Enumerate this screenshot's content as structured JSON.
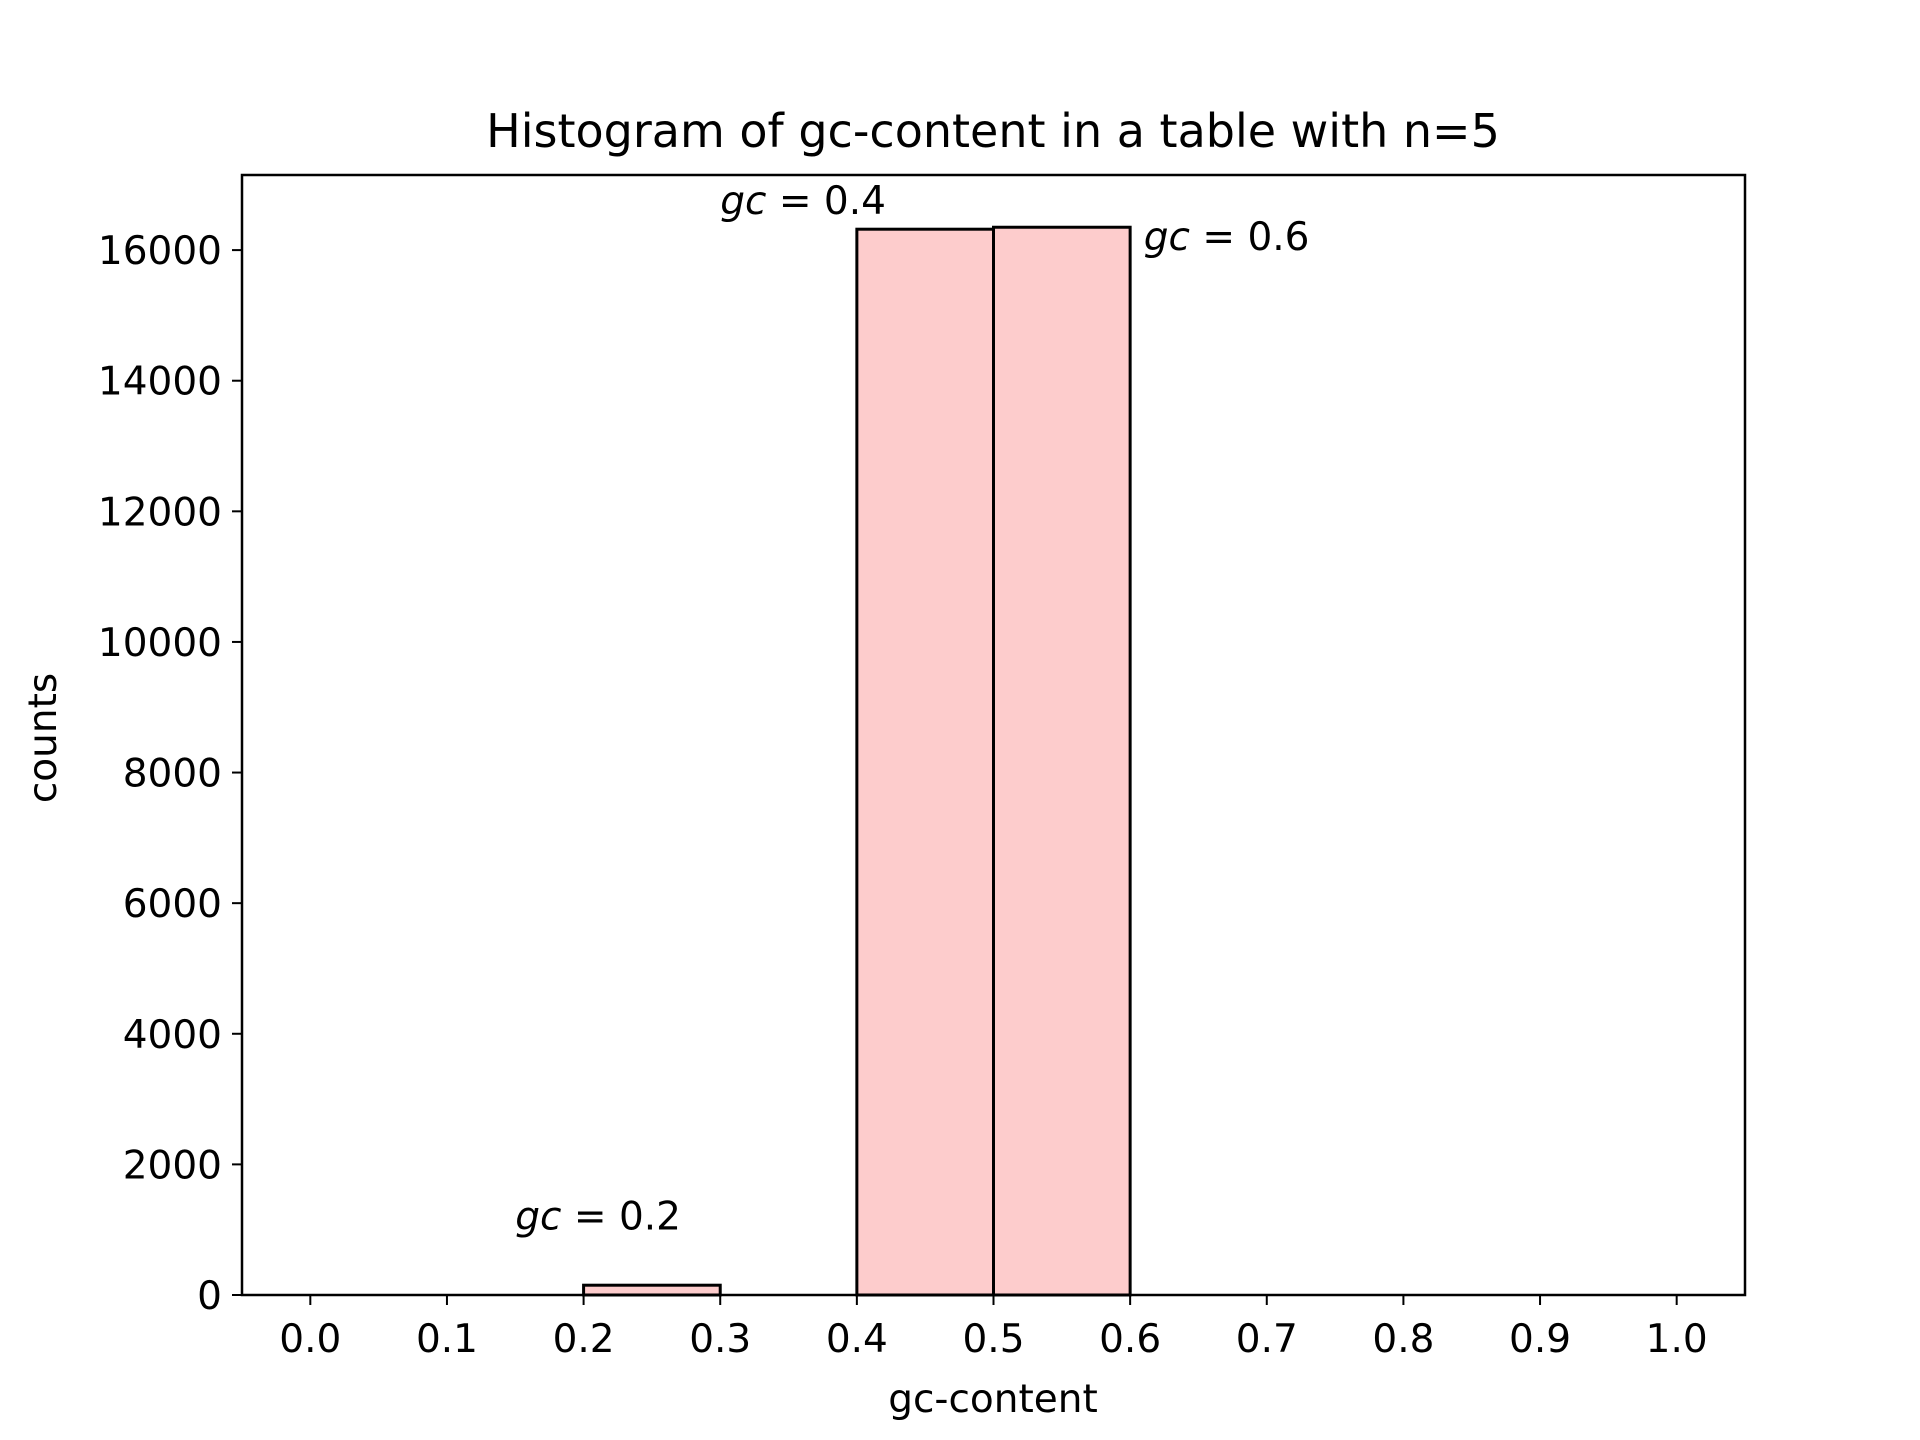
{
  "chart_data": {
    "type": "bar",
    "title": "Histogram of gc-content in a table with n=5",
    "xlabel": "gc-content",
    "ylabel": "counts",
    "xlim": [
      -0.05,
      1.05
    ],
    "ylim": [
      0,
      17150
    ],
    "xticks": [
      0.0,
      0.1,
      0.2,
      0.3,
      0.4,
      0.5,
      0.6,
      0.7,
      0.8,
      0.9,
      1.0
    ],
    "xtick_labels": [
      "0.0",
      "0.1",
      "0.2",
      "0.3",
      "0.4",
      "0.5",
      "0.6",
      "0.7",
      "0.8",
      "0.9",
      "1.0"
    ],
    "yticks": [
      0,
      2000,
      4000,
      6000,
      8000,
      10000,
      12000,
      14000,
      16000
    ],
    "ytick_labels": [
      "0",
      "2000",
      "4000",
      "6000",
      "8000",
      "10000",
      "12000",
      "14000",
      "16000"
    ],
    "bins": [
      {
        "x0": 0.0,
        "x1": 0.1,
        "count": 0
      },
      {
        "x0": 0.1,
        "x1": 0.2,
        "count": 0
      },
      {
        "x0": 0.2,
        "x1": 0.3,
        "count": 150
      },
      {
        "x0": 0.3,
        "x1": 0.4,
        "count": 0
      },
      {
        "x0": 0.4,
        "x1": 0.5,
        "count": 16320
      },
      {
        "x0": 0.5,
        "x1": 0.6,
        "count": 16350
      },
      {
        "x0": 0.6,
        "x1": 0.7,
        "count": 0
      },
      {
        "x0": 0.7,
        "x1": 0.8,
        "count": 0
      },
      {
        "x0": 0.8,
        "x1": 0.9,
        "count": 0
      },
      {
        "x0": 0.9,
        "x1": 1.0,
        "count": 0
      }
    ],
    "bar_color": "#fdcccc",
    "edge_color": "#000000",
    "grid": false,
    "annotations": [
      {
        "var": "gc",
        "eq": " = 0.2",
        "x": 0.15,
        "y": 1000
      },
      {
        "var": "gc",
        "eq": " = 0.4",
        "x": 0.3,
        "y": 16550
      },
      {
        "var": "gc",
        "eq": " = 0.6",
        "x": 0.61,
        "y": 16000
      }
    ]
  }
}
